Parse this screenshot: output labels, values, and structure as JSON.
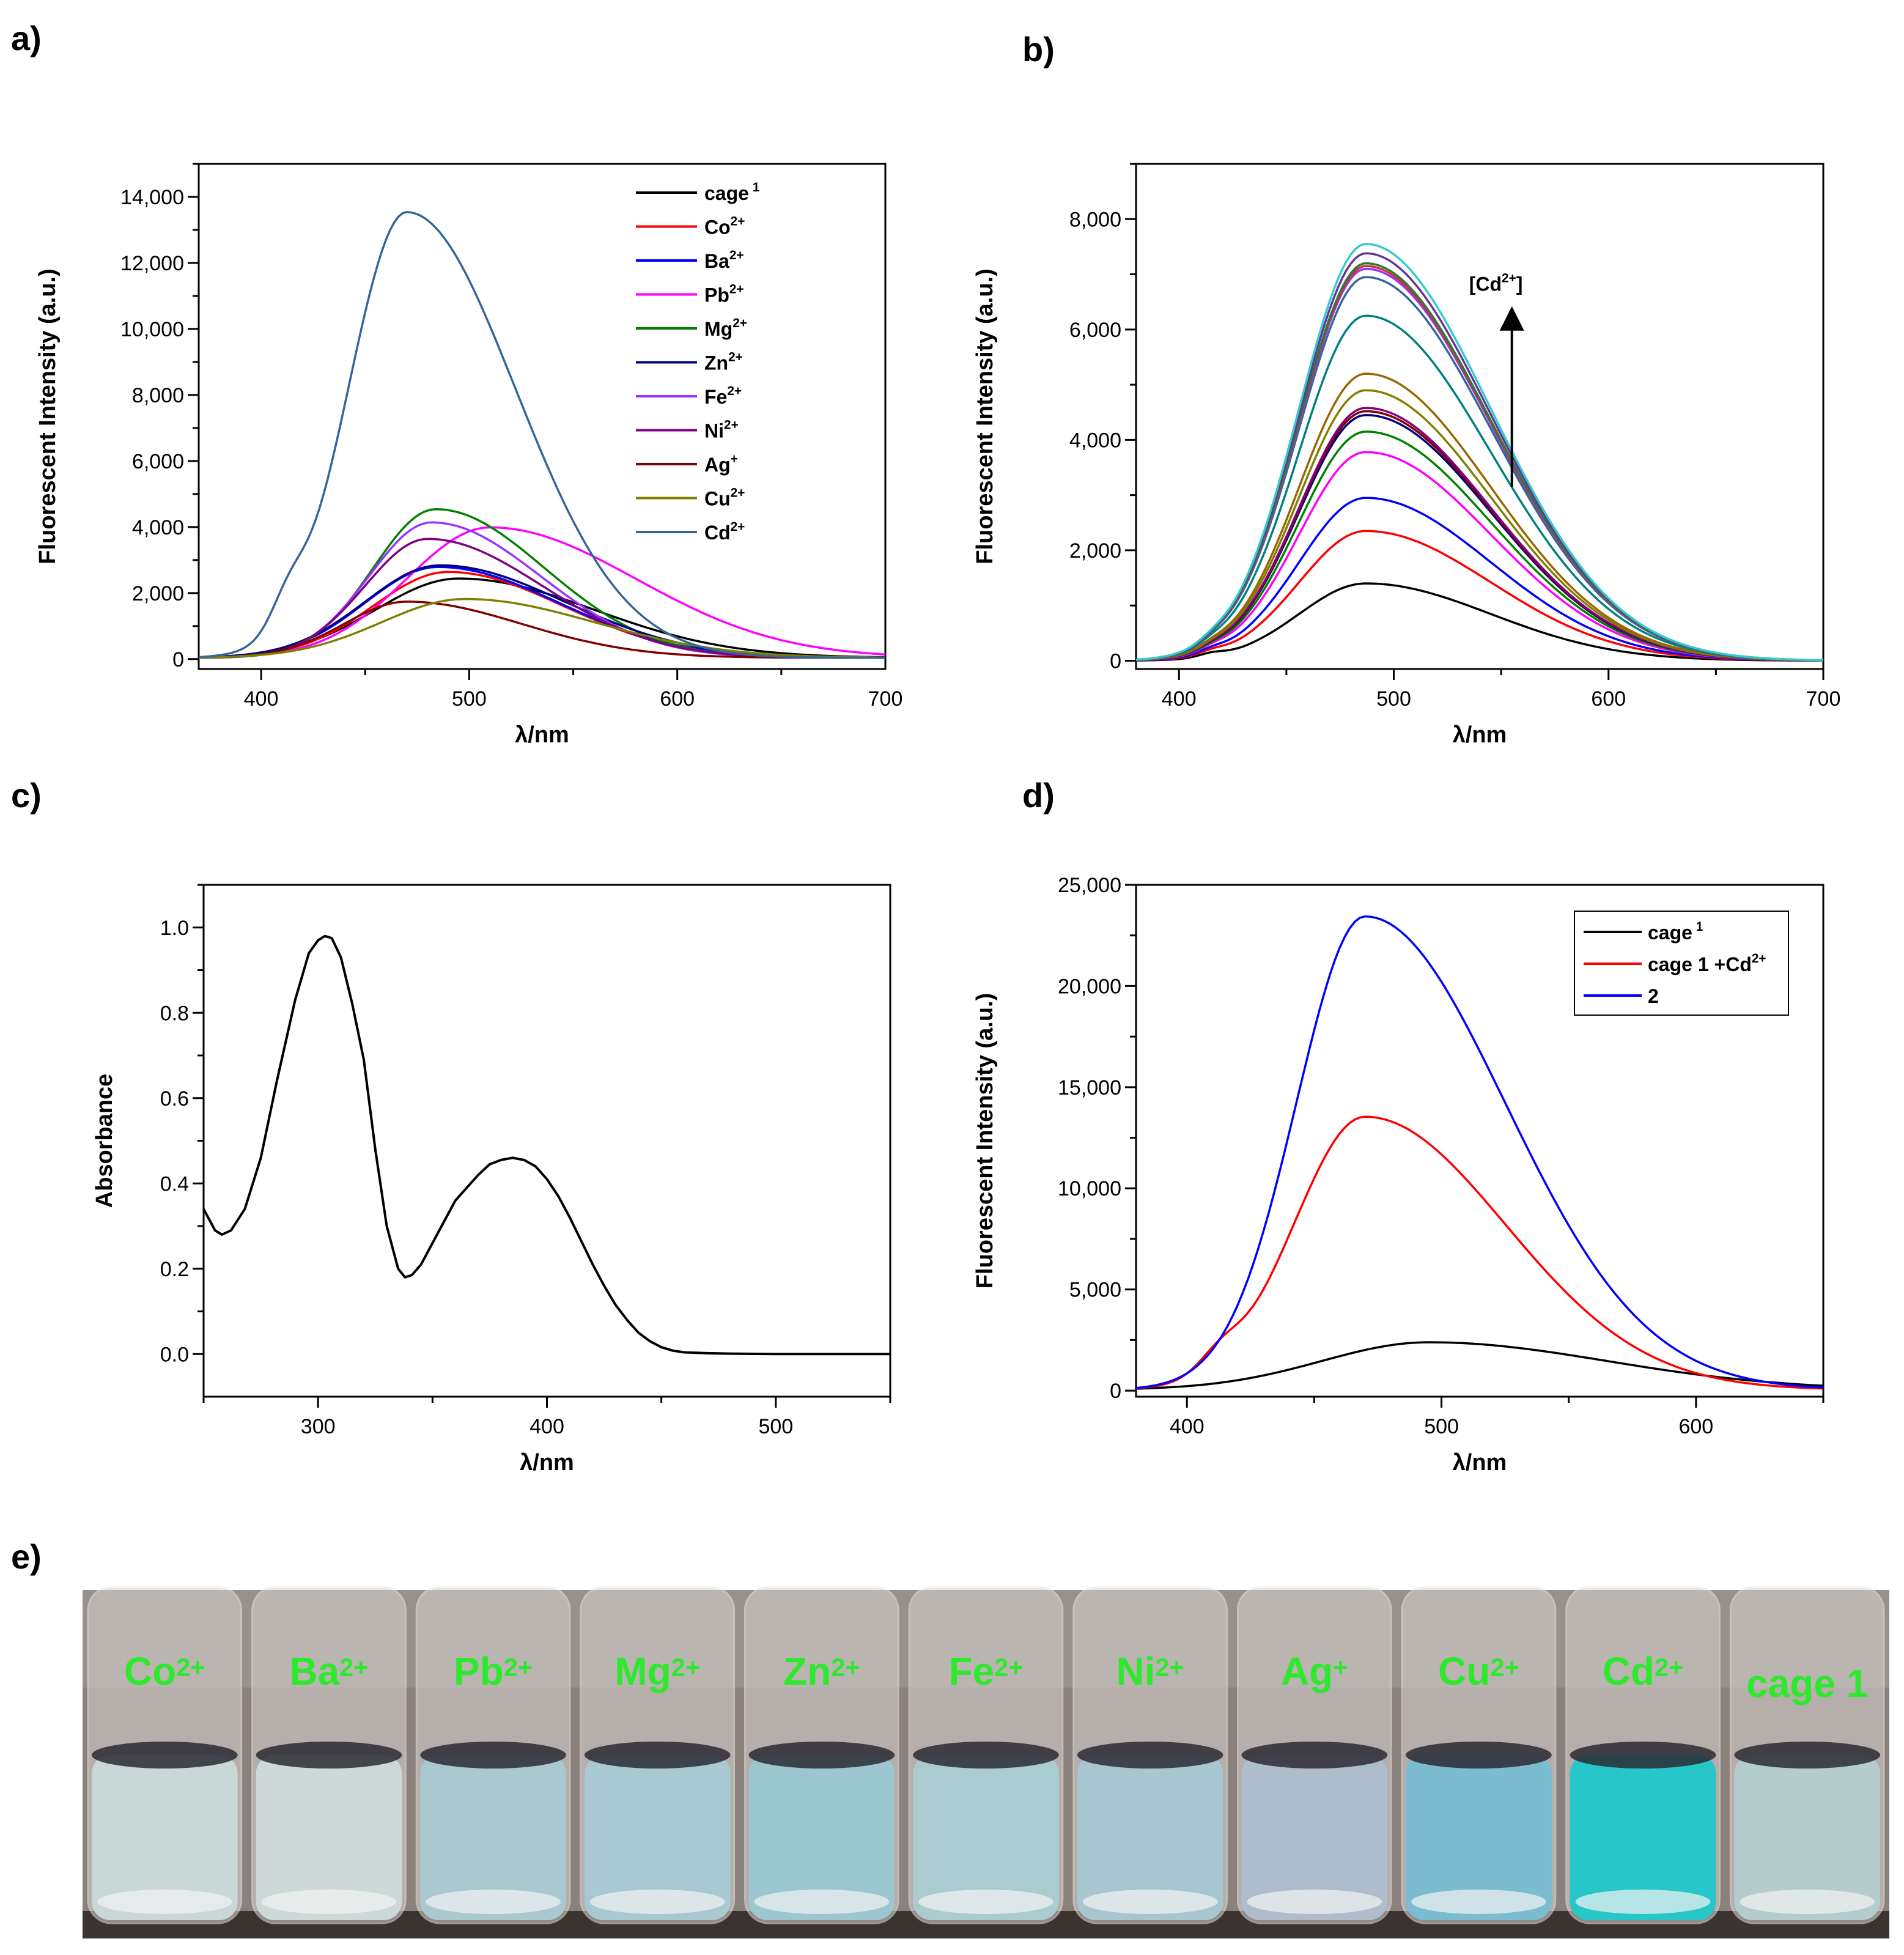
{
  "panels": {
    "a": "a)",
    "b": "b)",
    "c": "c)",
    "d": "d)",
    "e": "e)"
  },
  "chart_data": [
    {
      "id": "a",
      "type": "line",
      "xlabel": "λ/nm",
      "ylabel": "Fluorescent Intensity (a.u.)",
      "xlim": [
        370,
        700
      ],
      "ylim": [
        -300,
        15000
      ],
      "xticks": [
        400,
        500,
        600,
        700
      ],
      "yticks": [
        0,
        2000,
        4000,
        6000,
        8000,
        10000,
        12000,
        14000
      ],
      "ytick_labels": [
        "0",
        "2,000",
        "4,000",
        "6,000",
        "8,000",
        "10,000",
        "12,000",
        "14,000"
      ],
      "legend_position": "top-right",
      "series": [
        {
          "name": "cage 1",
          "base": "cage",
          "sup": " 1",
          "color": "#000000",
          "peak_x": 495,
          "peak_y": 2400,
          "wl": 40,
          "wr": 65
        },
        {
          "name": "Co2+",
          "base": "Co",
          "sup": "2+",
          "color": "#ff0000",
          "peak_x": 490,
          "peak_y": 2600,
          "wl": 36,
          "wr": 55
        },
        {
          "name": "Ba2+",
          "base": "Ba",
          "sup": "2+",
          "color": "#0000ff",
          "peak_x": 485,
          "peak_y": 2750,
          "wl": 35,
          "wr": 58
        },
        {
          "name": "Pb2+",
          "base": "Pb",
          "sup": "2+",
          "color": "#ff00ff",
          "peak_x": 510,
          "peak_y": 3950,
          "wl": 40,
          "wr": 70
        },
        {
          "name": "Mg2+",
          "base": "Mg",
          "sup": "2+",
          "color": "#008000",
          "peak_x": 484,
          "peak_y": 4500,
          "wl": 30,
          "wr": 52
        },
        {
          "name": "Zn2+",
          "base": "Zn",
          "sup": "2+",
          "color": "#000080",
          "peak_x": 486,
          "peak_y": 2800,
          "wl": 36,
          "wr": 60
        },
        {
          "name": "Fe2+",
          "base": "Fe",
          "sup": "2+",
          "color": "#9933ff",
          "peak_x": 482,
          "peak_y": 4100,
          "wl": 30,
          "wr": 52
        },
        {
          "name": "Ni2+",
          "base": "Ni",
          "sup": "2+",
          "color": "#800080",
          "peak_x": 480,
          "peak_y": 3600,
          "wl": 30,
          "wr": 55
        },
        {
          "name": "Ag+",
          "base": "Ag",
          "sup": "+",
          "color": "#800000",
          "peak_x": 470,
          "peak_y": 1700,
          "wl": 30,
          "wr": 55
        },
        {
          "name": "Cu2+",
          "base": "Cu",
          "sup": "2+",
          "color": "#808000",
          "peak_x": 498,
          "peak_y": 1780,
          "wl": 40,
          "wr": 62
        },
        {
          "name": "Cd2+",
          "base": "Cd",
          "sup": "2+",
          "color": "#336699",
          "peak_x": 470,
          "peak_y": 13500,
          "wl": 28,
          "wr": 52,
          "shoulder": true
        }
      ]
    },
    {
      "id": "b",
      "type": "line",
      "xlabel": "λ/nm",
      "ylabel": "Fluorescent Intensity (a.u.)",
      "xlim": [
        380,
        700
      ],
      "ylim": [
        -150,
        9000
      ],
      "xticks": [
        400,
        500,
        600,
        700
      ],
      "yticks": [
        0,
        2000,
        4000,
        6000,
        8000
      ],
      "ytick_labels": [
        "0",
        "2,000",
        "4,000",
        "6,000",
        "8,000"
      ],
      "annotation": {
        "base": "[Cd",
        "sup": "2+",
        "end": "]"
      },
      "series": [
        {
          "color": "#000000",
          "peak_y": 1400
        },
        {
          "color": "#ff0000",
          "peak_y": 2350
        },
        {
          "color": "#0000ff",
          "peak_y": 2950
        },
        {
          "color": "#ff00ff",
          "peak_y": 3780
        },
        {
          "color": "#008000",
          "peak_y": 4150
        },
        {
          "color": "#000080",
          "peak_y": 4450
        },
        {
          "color": "#800000",
          "peak_y": 4520
        },
        {
          "color": "#800080",
          "peak_y": 4580
        },
        {
          "color": "#808000",
          "peak_y": 4900
        },
        {
          "color": "#996600",
          "peak_y": 5200
        },
        {
          "color": "#008080",
          "peak_y": 6250
        },
        {
          "color": "#336699",
          "peak_y": 6950
        },
        {
          "color": "#9933ff",
          "peak_y": 7100
        },
        {
          "color": "#cc3333",
          "peak_y": 7150
        },
        {
          "color": "#2a7a3a",
          "peak_y": 7200
        },
        {
          "color": "#663399",
          "peak_y": 7380
        },
        {
          "color": "#33cccc",
          "peak_y": 7550
        }
      ]
    },
    {
      "id": "c",
      "type": "line",
      "xlabel": "λ/nm",
      "ylabel": "Absorbance",
      "xlim": [
        250,
        550
      ],
      "ylim": [
        -0.1,
        1.1
      ],
      "xticks": [
        300,
        400,
        500
      ],
      "yticks": [
        0.0,
        0.2,
        0.4,
        0.6,
        0.8,
        1.0
      ],
      "ytick_labels": [
        "0.0",
        "0.2",
        "0.4",
        "0.6",
        "0.8",
        "1.0"
      ],
      "series": [
        {
          "name": "absorbance",
          "color": "#000000",
          "x": [
            250,
            255,
            258,
            262,
            268,
            275,
            282,
            290,
            296,
            300,
            303,
            306,
            310,
            315,
            320,
            325,
            330,
            335,
            338,
            341,
            345,
            350,
            355,
            360,
            365,
            370,
            375,
            380,
            385,
            390,
            395,
            400,
            405,
            410,
            415,
            420,
            425,
            430,
            435,
            440,
            445,
            450,
            455,
            460,
            470,
            480,
            500,
            520,
            550
          ],
          "y": [
            0.34,
            0.29,
            0.28,
            0.29,
            0.34,
            0.46,
            0.64,
            0.83,
            0.94,
            0.97,
            0.98,
            0.975,
            0.93,
            0.82,
            0.69,
            0.48,
            0.3,
            0.2,
            0.18,
            0.185,
            0.21,
            0.26,
            0.31,
            0.36,
            0.39,
            0.42,
            0.445,
            0.455,
            0.46,
            0.455,
            0.44,
            0.41,
            0.37,
            0.32,
            0.265,
            0.21,
            0.16,
            0.115,
            0.08,
            0.05,
            0.03,
            0.016,
            0.008,
            0.004,
            0.002,
            0.001,
            0.0,
            0.0,
            0.0
          ]
        }
      ]
    },
    {
      "id": "d",
      "type": "line",
      "xlabel": "λ/nm",
      "ylabel": "Fluorescent Intensity (a.u.)",
      "xlim": [
        380,
        650
      ],
      "ylim": [
        -300,
        25000
      ],
      "xticks": [
        400,
        500,
        600
      ],
      "yticks": [
        0,
        5000,
        10000,
        15000,
        20000,
        25000
      ],
      "ytick_labels": [
        "0",
        "5,000",
        "10,000",
        "15,000",
        "20,000",
        "25,000"
      ],
      "legend_position": "top-right",
      "series": [
        {
          "name": "cage 1",
          "base": "cage",
          "sup": " 1",
          "color": "#000000",
          "peak_x": 495,
          "peak_y": 2350,
          "wl": 42,
          "wr": 70
        },
        {
          "name": "cage 1 +Cd2+",
          "base": "cage 1 +Cd",
          "sup": "2+",
          "color": "#ff0000",
          "peak_x": 470,
          "peak_y": 13500,
          "wl": 28,
          "wr": 55,
          "shoulder": true
        },
        {
          "name": "2",
          "base": "2",
          "sup": "",
          "color": "#0000ff",
          "peak_x": 470,
          "peak_y": 23400,
          "wl": 27,
          "wr": 55
        }
      ]
    }
  ],
  "photo": {
    "labels": [
      "Co",
      "Ba",
      "Pb",
      "Mg",
      "Zn",
      "Fe",
      "Ni",
      "Ag",
      "Cu",
      "Cd",
      "cage 1"
    ],
    "sups": [
      "2+",
      "2+",
      "2+",
      "2+",
      "2+",
      "2+",
      "2+",
      "+",
      "2+",
      "2+",
      ""
    ],
    "liquid_colors": [
      "#c9d8d6",
      "#cdd9d8",
      "#a9c8cf",
      "#a9c9d2",
      "#9cc7d0",
      "#aacbd0",
      "#a8c6d0",
      "#aebccb",
      "#7bbcd0",
      "#27c6c9",
      "#b5cccd"
    ]
  }
}
